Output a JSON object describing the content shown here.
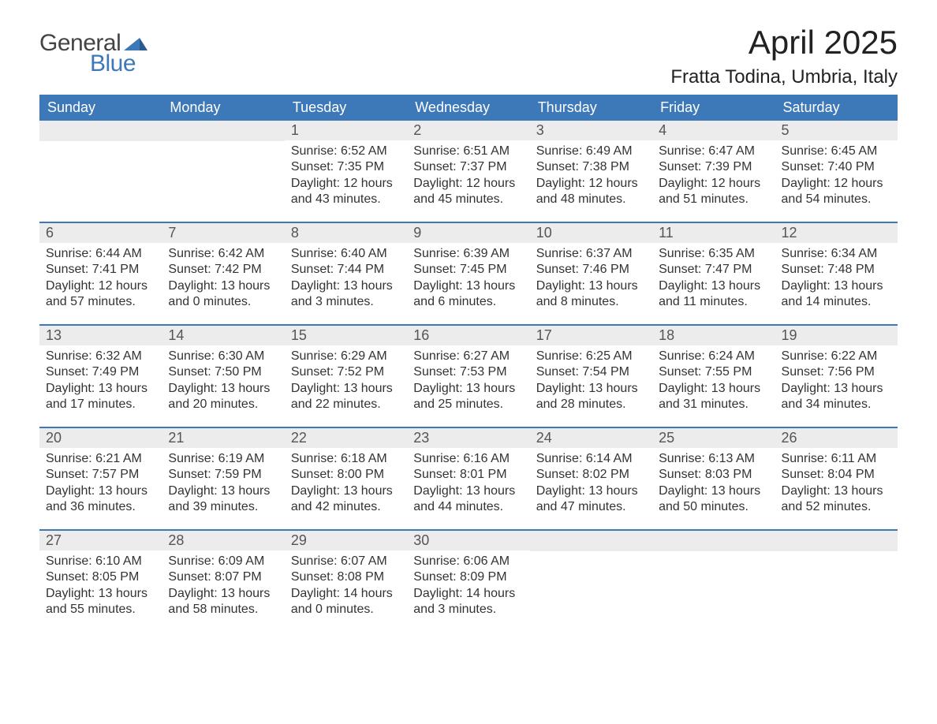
{
  "logo": {
    "text_general": "General",
    "text_blue": "Blue",
    "icon_color": "#3d79b8"
  },
  "title": "April 2025",
  "location": "Fratta Todina, Umbria, Italy",
  "colors": {
    "header_bg": "#3d79b8",
    "header_text": "#ffffff",
    "daynum_bg": "#ececec",
    "daynum_text": "#555555",
    "body_text": "#333333",
    "week_border": "#3d79b8",
    "page_bg": "#ffffff"
  },
  "fonts": {
    "title_size_pt": 32,
    "location_size_pt": 18,
    "weekday_size_pt": 14,
    "daynum_size_pt": 14,
    "body_size_pt": 12,
    "logo_size_pt": 22
  },
  "weekdays": [
    "Sunday",
    "Monday",
    "Tuesday",
    "Wednesday",
    "Thursday",
    "Friday",
    "Saturday"
  ],
  "weeks": [
    [
      {
        "num": "",
        "sunrise": "",
        "sunset": "",
        "daylight": ""
      },
      {
        "num": "",
        "sunrise": "",
        "sunset": "",
        "daylight": ""
      },
      {
        "num": "1",
        "sunrise": "6:52 AM",
        "sunset": "7:35 PM",
        "daylight": "12 hours and 43 minutes."
      },
      {
        "num": "2",
        "sunrise": "6:51 AM",
        "sunset": "7:37 PM",
        "daylight": "12 hours and 45 minutes."
      },
      {
        "num": "3",
        "sunrise": "6:49 AM",
        "sunset": "7:38 PM",
        "daylight": "12 hours and 48 minutes."
      },
      {
        "num": "4",
        "sunrise": "6:47 AM",
        "sunset": "7:39 PM",
        "daylight": "12 hours and 51 minutes."
      },
      {
        "num": "5",
        "sunrise": "6:45 AM",
        "sunset": "7:40 PM",
        "daylight": "12 hours and 54 minutes."
      }
    ],
    [
      {
        "num": "6",
        "sunrise": "6:44 AM",
        "sunset": "7:41 PM",
        "daylight": "12 hours and 57 minutes."
      },
      {
        "num": "7",
        "sunrise": "6:42 AM",
        "sunset": "7:42 PM",
        "daylight": "13 hours and 0 minutes."
      },
      {
        "num": "8",
        "sunrise": "6:40 AM",
        "sunset": "7:44 PM",
        "daylight": "13 hours and 3 minutes."
      },
      {
        "num": "9",
        "sunrise": "6:39 AM",
        "sunset": "7:45 PM",
        "daylight": "13 hours and 6 minutes."
      },
      {
        "num": "10",
        "sunrise": "6:37 AM",
        "sunset": "7:46 PM",
        "daylight": "13 hours and 8 minutes."
      },
      {
        "num": "11",
        "sunrise": "6:35 AM",
        "sunset": "7:47 PM",
        "daylight": "13 hours and 11 minutes."
      },
      {
        "num": "12",
        "sunrise": "6:34 AM",
        "sunset": "7:48 PM",
        "daylight": "13 hours and 14 minutes."
      }
    ],
    [
      {
        "num": "13",
        "sunrise": "6:32 AM",
        "sunset": "7:49 PM",
        "daylight": "13 hours and 17 minutes."
      },
      {
        "num": "14",
        "sunrise": "6:30 AM",
        "sunset": "7:50 PM",
        "daylight": "13 hours and 20 minutes."
      },
      {
        "num": "15",
        "sunrise": "6:29 AM",
        "sunset": "7:52 PM",
        "daylight": "13 hours and 22 minutes."
      },
      {
        "num": "16",
        "sunrise": "6:27 AM",
        "sunset": "7:53 PM",
        "daylight": "13 hours and 25 minutes."
      },
      {
        "num": "17",
        "sunrise": "6:25 AM",
        "sunset": "7:54 PM",
        "daylight": "13 hours and 28 minutes."
      },
      {
        "num": "18",
        "sunrise": "6:24 AM",
        "sunset": "7:55 PM",
        "daylight": "13 hours and 31 minutes."
      },
      {
        "num": "19",
        "sunrise": "6:22 AM",
        "sunset": "7:56 PM",
        "daylight": "13 hours and 34 minutes."
      }
    ],
    [
      {
        "num": "20",
        "sunrise": "6:21 AM",
        "sunset": "7:57 PM",
        "daylight": "13 hours and 36 minutes."
      },
      {
        "num": "21",
        "sunrise": "6:19 AM",
        "sunset": "7:59 PM",
        "daylight": "13 hours and 39 minutes."
      },
      {
        "num": "22",
        "sunrise": "6:18 AM",
        "sunset": "8:00 PM",
        "daylight": "13 hours and 42 minutes."
      },
      {
        "num": "23",
        "sunrise": "6:16 AM",
        "sunset": "8:01 PM",
        "daylight": "13 hours and 44 minutes."
      },
      {
        "num": "24",
        "sunrise": "6:14 AM",
        "sunset": "8:02 PM",
        "daylight": "13 hours and 47 minutes."
      },
      {
        "num": "25",
        "sunrise": "6:13 AM",
        "sunset": "8:03 PM",
        "daylight": "13 hours and 50 minutes."
      },
      {
        "num": "26",
        "sunrise": "6:11 AM",
        "sunset": "8:04 PM",
        "daylight": "13 hours and 52 minutes."
      }
    ],
    [
      {
        "num": "27",
        "sunrise": "6:10 AM",
        "sunset": "8:05 PM",
        "daylight": "13 hours and 55 minutes."
      },
      {
        "num": "28",
        "sunrise": "6:09 AM",
        "sunset": "8:07 PM",
        "daylight": "13 hours and 58 minutes."
      },
      {
        "num": "29",
        "sunrise": "6:07 AM",
        "sunset": "8:08 PM",
        "daylight": "14 hours and 0 minutes."
      },
      {
        "num": "30",
        "sunrise": "6:06 AM",
        "sunset": "8:09 PM",
        "daylight": "14 hours and 3 minutes."
      },
      {
        "num": "",
        "sunrise": "",
        "sunset": "",
        "daylight": ""
      },
      {
        "num": "",
        "sunrise": "",
        "sunset": "",
        "daylight": ""
      },
      {
        "num": "",
        "sunrise": "",
        "sunset": "",
        "daylight": ""
      }
    ]
  ],
  "labels": {
    "sunrise": "Sunrise: ",
    "sunset": "Sunset: ",
    "daylight": "Daylight: "
  }
}
